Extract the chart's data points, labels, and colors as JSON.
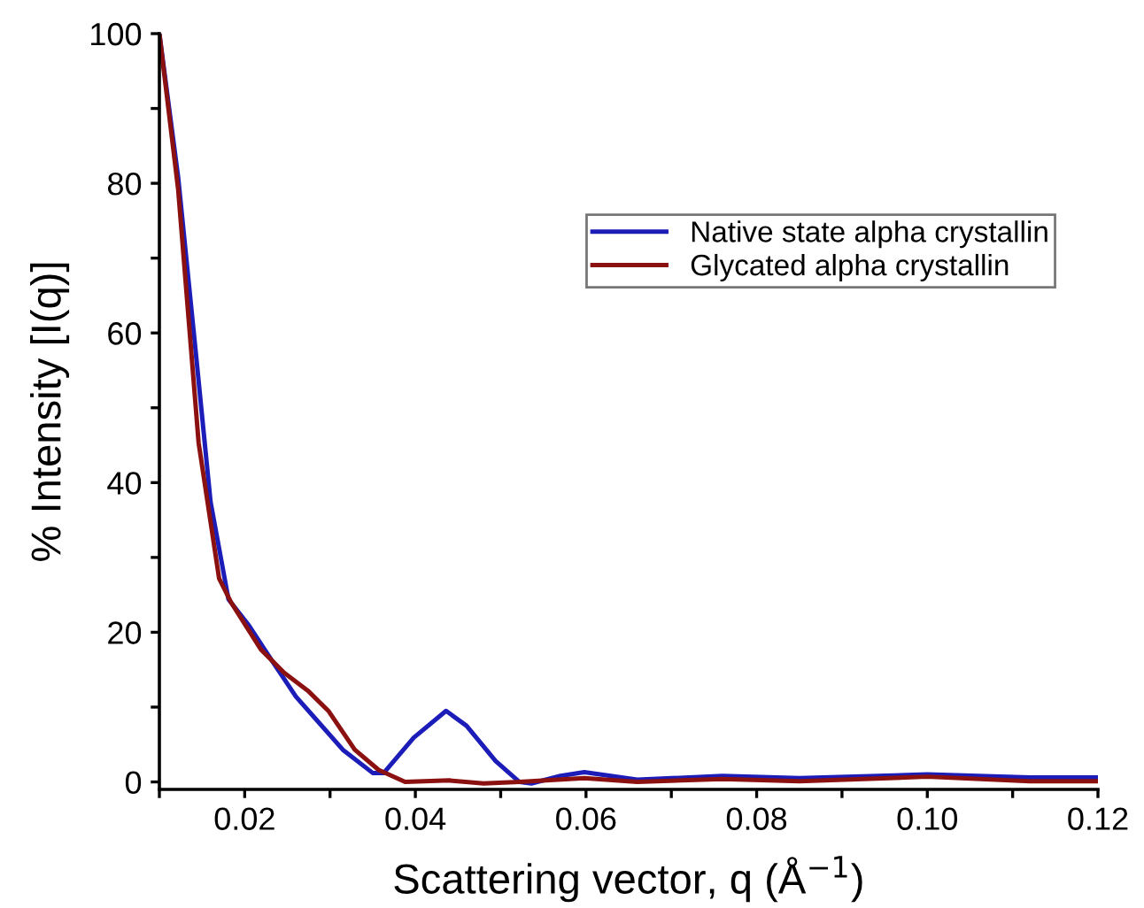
{
  "chart_data": {
    "type": "line",
    "xlabel": "Scattering vector, q (Å$^{−1}$)",
    "ylabel": "% Intensity [I(q)]",
    "xlim": [
      0.01,
      0.12
    ],
    "ylim": [
      -1,
      100
    ],
    "xticks": [
      {
        "value": 0.01,
        "label": null
      },
      0.02,
      {
        "value": 0.03,
        "label": null
      },
      0.04,
      {
        "value": 0.05,
        "label": null
      },
      0.06,
      {
        "value": 0.07,
        "label": null
      },
      0.08,
      {
        "value": 0.09,
        "label": null
      },
      {
        "value": 0.1,
        "label": "0.10"
      },
      {
        "value": 0.11,
        "label": null
      },
      0.12
    ],
    "yticks": [
      0,
      {
        "value": 10,
        "label": null
      },
      20,
      {
        "value": 30,
        "label": null
      },
      40,
      {
        "value": 50,
        "label": null
      },
      60,
      {
        "value": 70,
        "label": null
      },
      80,
      {
        "value": 90,
        "label": null
      },
      100
    ],
    "grid": false,
    "legend": "top right",
    "line_style": "solid",
    "marker": "none",
    "series": [
      {
        "name": "Native state alpha crystallin",
        "color": "#1c1cb8",
        "x": [
          0.01,
          0.0122,
          0.0143,
          0.016,
          0.0181,
          0.0205,
          0.0232,
          0.026,
          0.0281,
          0.0315,
          0.035,
          0.0363,
          0.0398,
          0.0436,
          0.046,
          0.0494,
          0.0522,
          0.0536,
          0.057,
          0.0598,
          0.066,
          0.076,
          0.085,
          0.1,
          0.112,
          0.12
        ],
        "values": [
          100,
          80.8,
          57,
          37.4,
          24.4,
          20.9,
          16.2,
          11.4,
          8.7,
          4.3,
          1.2,
          1.2,
          5.9,
          9.5,
          7.5,
          2.8,
          0,
          -0.2,
          0.8,
          1.3,
          0.3,
          0.8,
          0.5,
          1.0,
          0.6,
          0.6
        ]
      },
      {
        "name": "Glycated alpha crystallin",
        "color": "#8b1010",
        "x": [
          0.01,
          0.0122,
          0.0146,
          0.017,
          0.0184,
          0.0219,
          0.0246,
          0.0274,
          0.0298,
          0.0329,
          0.0357,
          0.0388,
          0.044,
          0.048,
          0.0522,
          0.0598,
          0.066,
          0.076,
          0.085,
          0.1,
          0.112,
          0.12
        ],
        "values": [
          100,
          79.2,
          45.3,
          27.2,
          24,
          17.7,
          14.6,
          12.2,
          9.5,
          4.3,
          1.6,
          0,
          0.2,
          -0.2,
          0,
          0.5,
          0.0,
          0.4,
          0.1,
          0.7,
          0.1,
          0.1
        ]
      }
    ]
  }
}
